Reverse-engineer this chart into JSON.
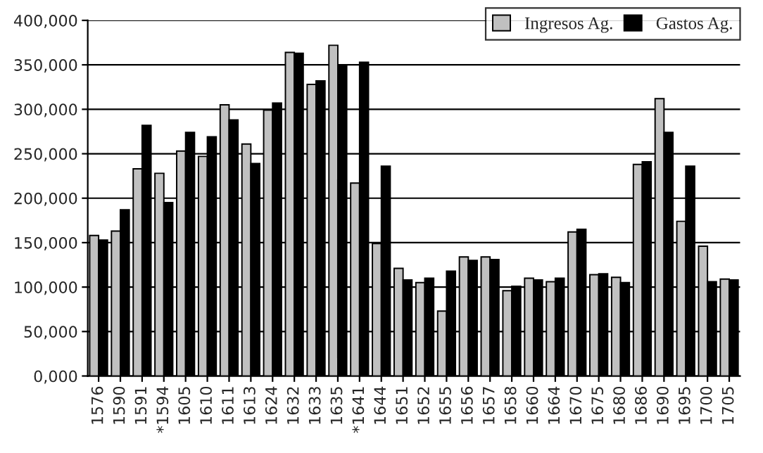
{
  "chart_data": {
    "type": "bar",
    "categories": [
      "1576",
      "1590",
      "1591",
      "*1594",
      "1605",
      "1610",
      "1611",
      "1613",
      "1624",
      "1632",
      "1633",
      "1635",
      "*1641",
      "1644",
      "1651",
      "1652",
      "1655",
      "1656",
      "1657",
      "1658",
      "1660",
      "1664",
      "1670",
      "1675",
      "1680",
      "1686",
      "1690",
      "1695",
      "1700",
      "1705"
    ],
    "series": [
      {
        "name": "Ingresos Ag.",
        "color": "#c0c0c0",
        "values": [
          158000,
          163000,
          233000,
          228000,
          253000,
          247000,
          305000,
          261000,
          299000,
          364000,
          328000,
          372000,
          217000,
          149000,
          121000,
          105000,
          73000,
          134000,
          134000,
          96000,
          110000,
          106000,
          162000,
          114000,
          111000,
          238000,
          312000,
          174000,
          146000,
          109000
        ]
      },
      {
        "name": "Gastos Ag.",
        "color": "#000000",
        "values": [
          153000,
          187000,
          282000,
          195000,
          274000,
          269000,
          288000,
          239000,
          307000,
          363000,
          332000,
          350000,
          353000,
          236000,
          108000,
          110000,
          118000,
          130000,
          131000,
          101000,
          108000,
          110000,
          165000,
          115000,
          105000,
          241000,
          274000,
          236000,
          106000,
          108000
        ]
      }
    ],
    "ylim": [
      0,
      400000
    ],
    "yticks": [
      {
        "value": 0,
        "label": "0,000"
      },
      {
        "value": 50000,
        "label": "50,000"
      },
      {
        "value": 100000,
        "label": "100,000"
      },
      {
        "value": 150000,
        "label": "150,000"
      },
      {
        "value": 200000,
        "label": "200,000"
      },
      {
        "value": 250000,
        "label": "250,000"
      },
      {
        "value": 300000,
        "label": "300,000"
      },
      {
        "value": 350000,
        "label": "350,000"
      },
      {
        "value": 400000,
        "label": "400,000"
      }
    ],
    "grid": "y",
    "legend": "top right"
  }
}
